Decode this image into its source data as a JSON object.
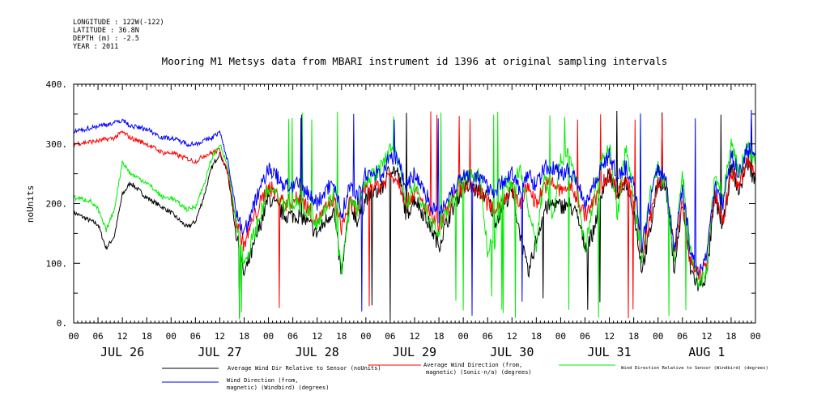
{
  "meta_lines": [
    "LONGITUDE : 122W(-122)",
    "LATITUDE : 36.8N",
    "DEPTH (m) : -2.5",
    "YEAR : 2011"
  ],
  "chart_data": {
    "type": "line",
    "title": "Mooring M1 Metsys data from MBARI instrument id 1396 at original sampling intervals",
    "ylabel": "noUnits",
    "xlabel": "",
    "ylim": [
      0,
      400
    ],
    "yticks": [
      "0.",
      "100.",
      "200.",
      "300.",
      "400."
    ],
    "xlim_hours": [
      0,
      168
    ],
    "hour_tick_labels": [
      "00",
      "06",
      "12",
      "18",
      "00",
      "06",
      "12",
      "18",
      "00",
      "06",
      "12",
      "18",
      "00",
      "06",
      "12",
      "18",
      "00",
      "06",
      "12",
      "18",
      "00",
      "06",
      "12",
      "18",
      "00",
      "06",
      "12",
      "18",
      "00"
    ],
    "day_labels": [
      "JUL 26",
      "JUL 27",
      "JUL 28",
      "JUL 29",
      "JUL 30",
      "JUL 31",
      "AUG  1"
    ],
    "grid": false,
    "series": [
      {
        "name": "Average Wind Dir Relative to Sensor (noUnits)",
        "color": "#000000",
        "anchors": [
          [
            0,
            185
          ],
          [
            6,
            165
          ],
          [
            8,
            125
          ],
          [
            10,
            145
          ],
          [
            12,
            215
          ],
          [
            14,
            235
          ],
          [
            18,
            210
          ],
          [
            24,
            185
          ],
          [
            28,
            160
          ],
          [
            30,
            170
          ],
          [
            32,
            210
          ],
          [
            34,
            260
          ],
          [
            36,
            285
          ],
          [
            38,
            250
          ],
          [
            40,
            150
          ],
          [
            42,
            80
          ],
          [
            44,
            120
          ],
          [
            48,
            210
          ],
          [
            52,
            180
          ],
          [
            56,
            180
          ],
          [
            60,
            150
          ],
          [
            64,
            190
          ],
          [
            66,
            80
          ],
          [
            68,
            200
          ],
          [
            70,
            170
          ],
          [
            72,
            210
          ],
          [
            76,
            225
          ],
          [
            78,
            260
          ],
          [
            80,
            250
          ],
          [
            82,
            180
          ],
          [
            84,
            210
          ],
          [
            88,
            160
          ],
          [
            90,
            130
          ],
          [
            92,
            170
          ],
          [
            94,
            200
          ],
          [
            96,
            230
          ],
          [
            100,
            220
          ],
          [
            102,
            210
          ],
          [
            104,
            170
          ],
          [
            106,
            200
          ],
          [
            108,
            220
          ],
          [
            110,
            150
          ],
          [
            112,
            80
          ],
          [
            114,
            140
          ],
          [
            116,
            190
          ],
          [
            118,
            200
          ],
          [
            120,
            195
          ],
          [
            122,
            200
          ],
          [
            124,
            180
          ],
          [
            126,
            130
          ],
          [
            128,
            150
          ],
          [
            130,
            220
          ],
          [
            132,
            250
          ],
          [
            134,
            210
          ],
          [
            136,
            240
          ],
          [
            138,
            190
          ],
          [
            140,
            90
          ],
          [
            142,
            150
          ],
          [
            144,
            240
          ],
          [
            146,
            225
          ],
          [
            148,
            90
          ],
          [
            150,
            200
          ],
          [
            152,
            90
          ],
          [
            154,
            60
          ],
          [
            156,
            80
          ],
          [
            158,
            210
          ],
          [
            160,
            160
          ],
          [
            162,
            260
          ],
          [
            164,
            220
          ],
          [
            166,
            270
          ],
          [
            168,
            235
          ]
        ]
      },
      {
        "name": "Average Wind Direction (from, magnetic) (Sonic-n/a) (degrees)",
        "color": "#ff0000",
        "anchors": [
          [
            0,
            300
          ],
          [
            6,
            305
          ],
          [
            10,
            310
          ],
          [
            12,
            320
          ],
          [
            14,
            310
          ],
          [
            18,
            300
          ],
          [
            22,
            285
          ],
          [
            24,
            285
          ],
          [
            28,
            275
          ],
          [
            30,
            270
          ],
          [
            32,
            280
          ],
          [
            34,
            285
          ],
          [
            36,
            290
          ],
          [
            38,
            250
          ],
          [
            40,
            170
          ],
          [
            42,
            130
          ],
          [
            44,
            170
          ],
          [
            48,
            230
          ],
          [
            52,
            200
          ],
          [
            56,
            210
          ],
          [
            60,
            170
          ],
          [
            64,
            210
          ],
          [
            66,
            160
          ],
          [
            68,
            200
          ],
          [
            70,
            190
          ],
          [
            72,
            230
          ],
          [
            76,
            230
          ],
          [
            78,
            250
          ],
          [
            80,
            240
          ],
          [
            82,
            200
          ],
          [
            84,
            220
          ],
          [
            88,
            180
          ],
          [
            90,
            160
          ],
          [
            92,
            190
          ],
          [
            94,
            210
          ],
          [
            96,
            230
          ],
          [
            100,
            220
          ],
          [
            102,
            200
          ],
          [
            104,
            190
          ],
          [
            106,
            210
          ],
          [
            108,
            225
          ],
          [
            110,
            200
          ],
          [
            112,
            230
          ],
          [
            114,
            200
          ],
          [
            116,
            230
          ],
          [
            118,
            235
          ],
          [
            120,
            220
          ],
          [
            122,
            230
          ],
          [
            124,
            210
          ],
          [
            126,
            180
          ],
          [
            128,
            200
          ],
          [
            130,
            230
          ],
          [
            132,
            250
          ],
          [
            134,
            220
          ],
          [
            136,
            240
          ],
          [
            138,
            210
          ],
          [
            140,
            110
          ],
          [
            142,
            170
          ],
          [
            144,
            240
          ],
          [
            146,
            230
          ],
          [
            148,
            120
          ],
          [
            150,
            200
          ],
          [
            152,
            100
          ],
          [
            154,
            80
          ],
          [
            156,
            100
          ],
          [
            158,
            220
          ],
          [
            160,
            170
          ],
          [
            162,
            255
          ],
          [
            164,
            230
          ],
          [
            166,
            270
          ],
          [
            168,
            250
          ]
        ]
      },
      {
        "name": "Wind Direction Relative to Sensor (Windbird) (degrees)",
        "color": "#00ee00",
        "anchors": [
          [
            0,
            210
          ],
          [
            4,
            205
          ],
          [
            6,
            190
          ],
          [
            8,
            155
          ],
          [
            10,
            190
          ],
          [
            12,
            270
          ],
          [
            14,
            250
          ],
          [
            18,
            235
          ],
          [
            22,
            210
          ],
          [
            24,
            210
          ],
          [
            28,
            190
          ],
          [
            30,
            195
          ],
          [
            32,
            230
          ],
          [
            34,
            275
          ],
          [
            36,
            300
          ],
          [
            38,
            260
          ],
          [
            40,
            170
          ],
          [
            42,
            100
          ],
          [
            44,
            140
          ],
          [
            48,
            225
          ],
          [
            52,
            200
          ],
          [
            56,
            200
          ],
          [
            60,
            170
          ],
          [
            64,
            215
          ],
          [
            66,
            80
          ],
          [
            68,
            200
          ],
          [
            70,
            190
          ],
          [
            72,
            240
          ],
          [
            76,
            260
          ],
          [
            78,
            300
          ],
          [
            80,
            270
          ],
          [
            82,
            200
          ],
          [
            84,
            230
          ],
          [
            88,
            170
          ],
          [
            90,
            150
          ],
          [
            92,
            190
          ],
          [
            94,
            220
          ],
          [
            96,
            240
          ],
          [
            100,
            250
          ],
          [
            102,
            120
          ],
          [
            104,
            140
          ],
          [
            106,
            240
          ],
          [
            108,
            225
          ],
          [
            110,
            260
          ],
          [
            112,
            190
          ],
          [
            114,
            130
          ],
          [
            116,
            250
          ],
          [
            118,
            180
          ],
          [
            120,
            270
          ],
          [
            122,
            290
          ],
          [
            124,
            230
          ],
          [
            126,
            120
          ],
          [
            128,
            200
          ],
          [
            130,
            270
          ],
          [
            132,
            300
          ],
          [
            134,
            180
          ],
          [
            136,
            290
          ],
          [
            138,
            220
          ],
          [
            140,
            100
          ],
          [
            142,
            220
          ],
          [
            144,
            260
          ],
          [
            146,
            230
          ],
          [
            148,
            110
          ],
          [
            150,
            250
          ],
          [
            152,
            120
          ],
          [
            154,
            60
          ],
          [
            156,
            90
          ],
          [
            158,
            250
          ],
          [
            160,
            210
          ],
          [
            162,
            300
          ],
          [
            164,
            250
          ],
          [
            166,
            300
          ],
          [
            168,
            265
          ]
        ]
      },
      {
        "name": "Wind Direction (from, magnetic) (Windbird) (degrees)",
        "color": "#0000ff",
        "anchors": [
          [
            0,
            320
          ],
          [
            6,
            330
          ],
          [
            10,
            335
          ],
          [
            12,
            340
          ],
          [
            14,
            330
          ],
          [
            18,
            325
          ],
          [
            22,
            310
          ],
          [
            24,
            310
          ],
          [
            28,
            300
          ],
          [
            30,
            300
          ],
          [
            32,
            305
          ],
          [
            34,
            310
          ],
          [
            36,
            320
          ],
          [
            38,
            270
          ],
          [
            40,
            190
          ],
          [
            42,
            150
          ],
          [
            44,
            190
          ],
          [
            48,
            260
          ],
          [
            52,
            230
          ],
          [
            56,
            230
          ],
          [
            60,
            200
          ],
          [
            64,
            240
          ],
          [
            66,
            180
          ],
          [
            68,
            230
          ],
          [
            70,
            210
          ],
          [
            72,
            250
          ],
          [
            76,
            250
          ],
          [
            78,
            280
          ],
          [
            80,
            270
          ],
          [
            82,
            230
          ],
          [
            84,
            250
          ],
          [
            88,
            200
          ],
          [
            90,
            180
          ],
          [
            92,
            210
          ],
          [
            94,
            230
          ],
          [
            96,
            250
          ],
          [
            100,
            240
          ],
          [
            102,
            230
          ],
          [
            104,
            220
          ],
          [
            106,
            240
          ],
          [
            108,
            250
          ],
          [
            110,
            220
          ],
          [
            112,
            250
          ],
          [
            114,
            230
          ],
          [
            116,
            260
          ],
          [
            118,
            260
          ],
          [
            120,
            250
          ],
          [
            122,
            255
          ],
          [
            124,
            240
          ],
          [
            126,
            200
          ],
          [
            128,
            230
          ],
          [
            130,
            260
          ],
          [
            132,
            280
          ],
          [
            134,
            245
          ],
          [
            136,
            260
          ],
          [
            138,
            240
          ],
          [
            140,
            130
          ],
          [
            142,
            200
          ],
          [
            144,
            260
          ],
          [
            146,
            240
          ],
          [
            148,
            120
          ],
          [
            150,
            230
          ],
          [
            152,
            120
          ],
          [
            154,
            80
          ],
          [
            156,
            120
          ],
          [
            158,
            230
          ],
          [
            160,
            200
          ],
          [
            162,
            280
          ],
          [
            164,
            250
          ],
          [
            166,
            290
          ],
          [
            168,
            280
          ]
        ]
      }
    ]
  },
  "legend": [
    {
      "label": "Average Wind Dir Relative to Sensor (noUnits)",
      "color": "#000000"
    },
    {
      "label_line1": "Average Wind Direction (from,",
      "label_line2": "magnetic) (Sonic-n/a) (degrees)",
      "color": "#ff0000"
    },
    {
      "label": "Wind Direction Relative to Sensor (Windbird) (degrees)",
      "color": "#00ee00"
    },
    {
      "label_line1": "Wind Direction (from,",
      "label_line2": "magnetic) (Windbird) (degrees)",
      "color": "#0000ff"
    }
  ]
}
